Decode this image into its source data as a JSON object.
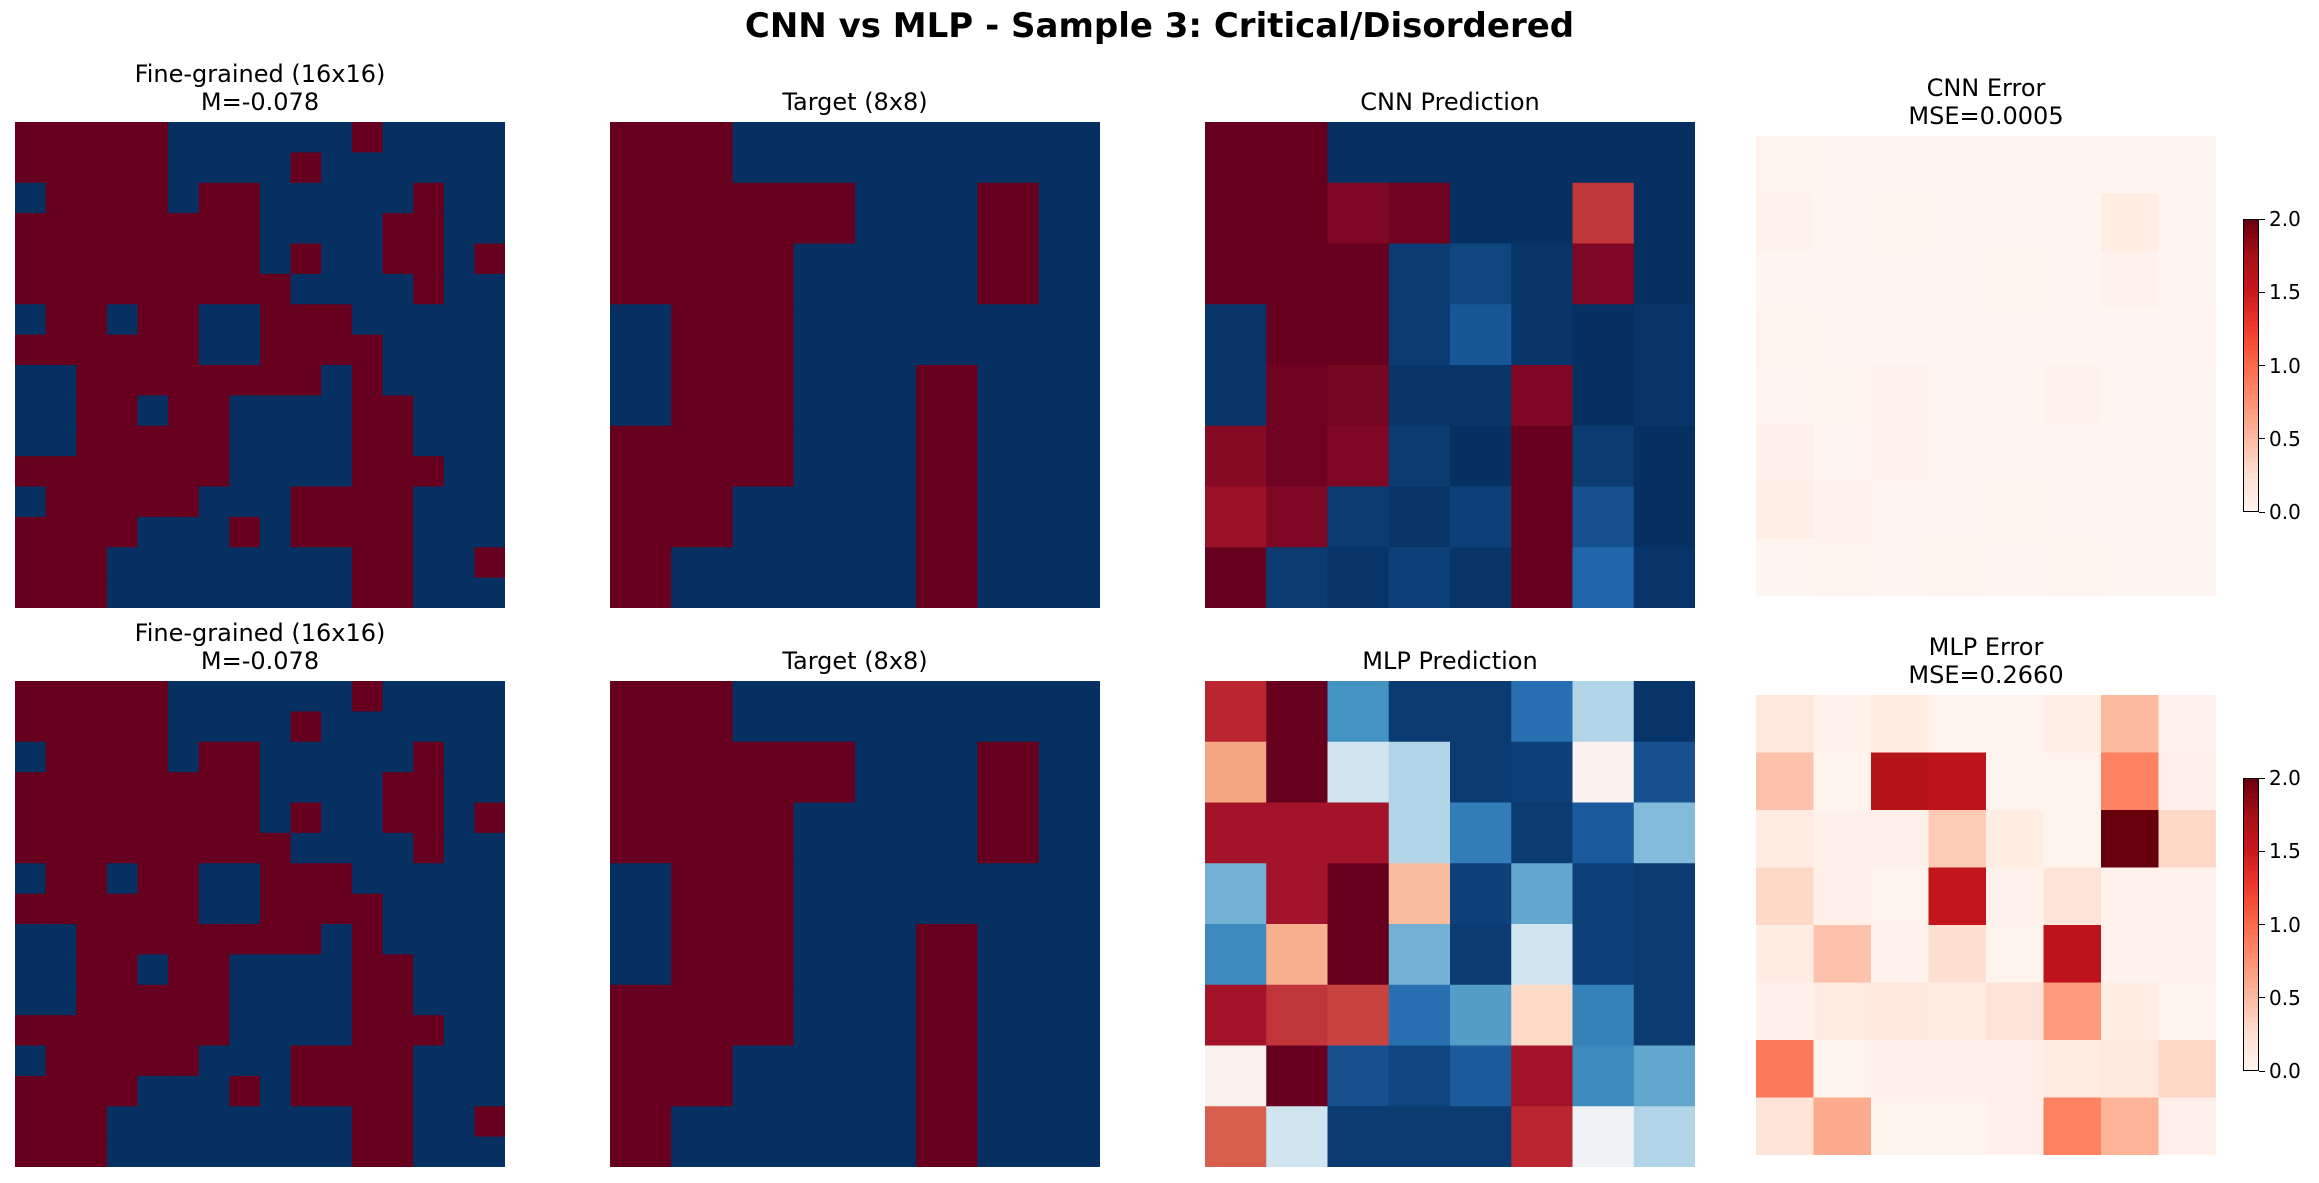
{
  "title": "CNN vs MLP - Sample 3: Critical/Disordered",
  "colors": {
    "spin_up": "#67001f",
    "spin_down": "#053061"
  },
  "colorbar": {
    "ticks": [
      "2.0",
      "1.5",
      "1.0",
      "0.5",
      "0.0"
    ],
    "vmin": 0.0,
    "vmax": 2.0
  },
  "panels": {
    "fine1": {
      "title": "Fine-grained (16x16)",
      "subtitle": "M=-0.078"
    },
    "target1": {
      "title": "Target (8x8)",
      "subtitle": ""
    },
    "cnnpred": {
      "title": "CNN Prediction",
      "subtitle": ""
    },
    "cnnerr": {
      "title": "CNN Error",
      "subtitle": "MSE=0.0005"
    },
    "fine2": {
      "title": "Fine-grained (16x16)",
      "subtitle": "M=-0.078"
    },
    "target2": {
      "title": "Target (8x8)",
      "subtitle": ""
    },
    "mlppred": {
      "title": "MLP Prediction",
      "subtitle": ""
    },
    "mlperr": {
      "title": "MLP Error",
      "subtitle": "MSE=0.2660"
    }
  },
  "chart_data": {
    "type": "heatmap",
    "fine_grained": [
      [
        1,
        1,
        1,
        1,
        1,
        0,
        0,
        0,
        0,
        0,
        0,
        1,
        0,
        0,
        0,
        0
      ],
      [
        1,
        1,
        1,
        1,
        1,
        0,
        0,
        0,
        0,
        1,
        0,
        0,
        0,
        0,
        0,
        0
      ],
      [
        0,
        1,
        1,
        1,
        1,
        0,
        1,
        1,
        0,
        0,
        0,
        0,
        0,
        1,
        0,
        0
      ],
      [
        1,
        1,
        1,
        1,
        1,
        1,
        1,
        1,
        0,
        0,
        0,
        0,
        1,
        1,
        0,
        0
      ],
      [
        1,
        1,
        1,
        1,
        1,
        1,
        1,
        1,
        0,
        1,
        0,
        0,
        1,
        1,
        0,
        1
      ],
      [
        1,
        1,
        1,
        1,
        1,
        1,
        1,
        1,
        1,
        0,
        0,
        0,
        0,
        1,
        0,
        0
      ],
      [
        0,
        1,
        1,
        0,
        1,
        1,
        0,
        0,
        1,
        1,
        1,
        0,
        0,
        0,
        0,
        0
      ],
      [
        1,
        1,
        1,
        1,
        1,
        1,
        0,
        0,
        1,
        1,
        1,
        1,
        0,
        0,
        0,
        0
      ],
      [
        0,
        0,
        1,
        1,
        1,
        1,
        1,
        1,
        1,
        1,
        0,
        1,
        0,
        0,
        0,
        0
      ],
      [
        0,
        0,
        1,
        1,
        0,
        1,
        1,
        0,
        0,
        0,
        0,
        1,
        1,
        0,
        0,
        0
      ],
      [
        0,
        0,
        1,
        1,
        1,
        1,
        1,
        0,
        0,
        0,
        0,
        1,
        1,
        0,
        0,
        0
      ],
      [
        1,
        1,
        1,
        1,
        1,
        1,
        1,
        0,
        0,
        0,
        0,
        1,
        1,
        1,
        0,
        0
      ],
      [
        0,
        1,
        1,
        1,
        1,
        1,
        0,
        0,
        0,
        1,
        1,
        1,
        1,
        0,
        0,
        0
      ],
      [
        1,
        1,
        1,
        1,
        0,
        0,
        0,
        1,
        0,
        1,
        1,
        1,
        1,
        0,
        0,
        0
      ],
      [
        1,
        1,
        1,
        0,
        0,
        0,
        0,
        0,
        0,
        0,
        0,
        1,
        1,
        0,
        0,
        1
      ],
      [
        1,
        1,
        1,
        0,
        0,
        0,
        0,
        0,
        0,
        0,
        0,
        1,
        1,
        0,
        0,
        0
      ]
    ],
    "target": [
      [
        1,
        1,
        0,
        0,
        0,
        0,
        0,
        0
      ],
      [
        1,
        1,
        1,
        1,
        0,
        0,
        1,
        0
      ],
      [
        1,
        1,
        1,
        0,
        0,
        0,
        1,
        0
      ],
      [
        0,
        1,
        1,
        0,
        0,
        0,
        0,
        0
      ],
      [
        0,
        1,
        1,
        0,
        0,
        1,
        0,
        0
      ],
      [
        1,
        1,
        1,
        0,
        0,
        1,
        0,
        0
      ],
      [
        1,
        1,
        0,
        0,
        0,
        1,
        0,
        0
      ],
      [
        1,
        0,
        0,
        0,
        0,
        1,
        0,
        0
      ]
    ],
    "cnn_prediction": [
      [
        1.0,
        1.0,
        0.0,
        0.0,
        0.0,
        0.0,
        0.0,
        0.0
      ],
      [
        1.0,
        1.0,
        0.97,
        0.99,
        0.0,
        0.0,
        0.86,
        0.0
      ],
      [
        1.0,
        1.0,
        1.0,
        0.02,
        0.04,
        0.01,
        0.97,
        0.0
      ],
      [
        0.01,
        1.0,
        1.0,
        0.02,
        0.07,
        0.01,
        0.0,
        0.01
      ],
      [
        0.01,
        0.99,
        0.98,
        0.01,
        0.01,
        0.97,
        0.0,
        0.01
      ],
      [
        0.96,
        0.99,
        0.97,
        0.02,
        0.0,
        1.0,
        0.02,
        0.0
      ],
      [
        0.93,
        0.97,
        0.02,
        0.01,
        0.03,
        1.0,
        0.06,
        0.0
      ],
      [
        1.0,
        0.02,
        0.01,
        0.03,
        0.01,
        1.0,
        0.1,
        0.01
      ]
    ],
    "cnn_error": [
      [
        0.02,
        0.0,
        0.0,
        0.0,
        0.0,
        0.0,
        0.0,
        0.0
      ],
      [
        0.04,
        0.0,
        0.02,
        0.01,
        0.0,
        0.0,
        0.1,
        0.0
      ],
      [
        0.0,
        0.0,
        0.0,
        0.01,
        0.02,
        0.0,
        0.03,
        0.0
      ],
      [
        0.02,
        0.0,
        0.0,
        0.01,
        0.01,
        0.0,
        0.0,
        0.01
      ],
      [
        0.01,
        0.02,
        0.03,
        0.01,
        0.0,
        0.04,
        0.0,
        0.0
      ],
      [
        0.06,
        0.01,
        0.04,
        0.01,
        0.0,
        0.0,
        0.01,
        0.0
      ],
      [
        0.08,
        0.03,
        0.01,
        0.01,
        0.02,
        0.0,
        0.0,
        0.0
      ],
      [
        0.0,
        0.02,
        0.01,
        0.02,
        0.01,
        0.02,
        0.0,
        0.0
      ]
    ],
    "mlp_prediction": [
      [
        0.88,
        1.0,
        0.2,
        0.02,
        0.02,
        0.12,
        0.35,
        0.01
      ],
      [
        0.7,
        1.0,
        0.4,
        0.35,
        0.02,
        0.03,
        0.52,
        0.06
      ],
      [
        0.92,
        0.92,
        0.92,
        0.35,
        0.15,
        0.02,
        0.08,
        0.28
      ],
      [
        0.26,
        0.92,
        1.0,
        0.66,
        0.03,
        0.24,
        0.03,
        0.02
      ],
      [
        0.18,
        0.68,
        1.0,
        0.26,
        0.02,
        0.4,
        0.03,
        0.02
      ],
      [
        0.92,
        0.86,
        0.84,
        0.12,
        0.22,
        0.6,
        0.16,
        0.02
      ],
      [
        0.52,
        1.0,
        0.06,
        0.04,
        0.08,
        0.92,
        0.18,
        0.24
      ],
      [
        0.8,
        0.4,
        0.02,
        0.02,
        0.02,
        0.88,
        0.48,
        0.35
      ]
    ],
    "mlp_error": [
      [
        0.15,
        0.04,
        0.1,
        0.02,
        0.02,
        0.08,
        0.5,
        0.03
      ],
      [
        0.45,
        0.02,
        1.65,
        1.6,
        0.02,
        0.02,
        0.85,
        0.05
      ],
      [
        0.12,
        0.05,
        0.05,
        0.4,
        0.1,
        0.02,
        2.0,
        0.3
      ],
      [
        0.3,
        0.05,
        0.02,
        1.55,
        0.03,
        0.2,
        0.03,
        0.03
      ],
      [
        0.1,
        0.45,
        0.03,
        0.25,
        0.02,
        1.6,
        0.03,
        0.03
      ],
      [
        0.05,
        0.12,
        0.15,
        0.1,
        0.2,
        0.7,
        0.1,
        0.02
      ],
      [
        0.9,
        0.02,
        0.05,
        0.05,
        0.07,
        0.12,
        0.14,
        0.3
      ],
      [
        0.2,
        0.6,
        0.02,
        0.02,
        0.05,
        0.85,
        0.55,
        0.05
      ]
    ]
  }
}
